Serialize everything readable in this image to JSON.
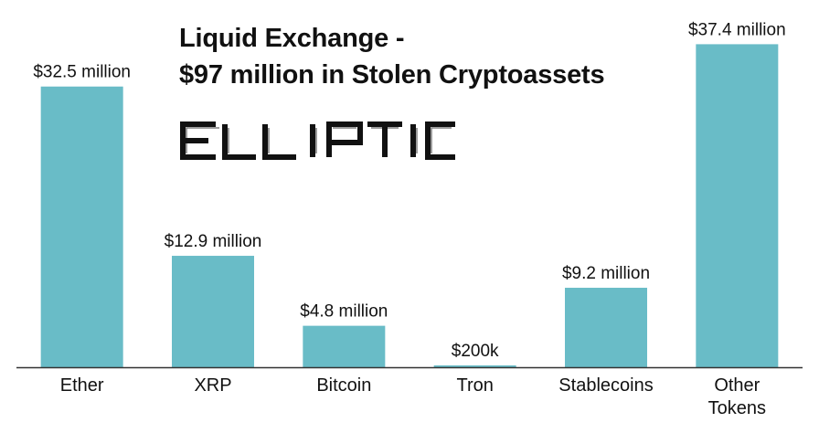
{
  "brand": {
    "logo_text": "ELLIPTIC"
  },
  "chart_data": {
    "type": "bar",
    "title_lines": [
      "Liquid Exchange -",
      "$97 million in Stolen Cryptoassets"
    ],
    "categories": [
      "Ether",
      "XRP",
      "Bitcoin",
      "Tron",
      "Stablecoins",
      "Other Tokens"
    ],
    "values": [
      32.5,
      12.9,
      4.8,
      0.2,
      9.2,
      37.4
    ],
    "value_unit": "million USD",
    "data_labels": [
      "$32.5 million",
      "$12.9 million",
      "$4.8 million",
      "$200k",
      "$9.2 million",
      "$37.4 million"
    ],
    "xlabel": "",
    "ylabel": "",
    "ylim": [
      0,
      38.5
    ],
    "grid": false,
    "legend": "none",
    "bar_color": "#69bcc7",
    "axis_color": "#333333"
  }
}
